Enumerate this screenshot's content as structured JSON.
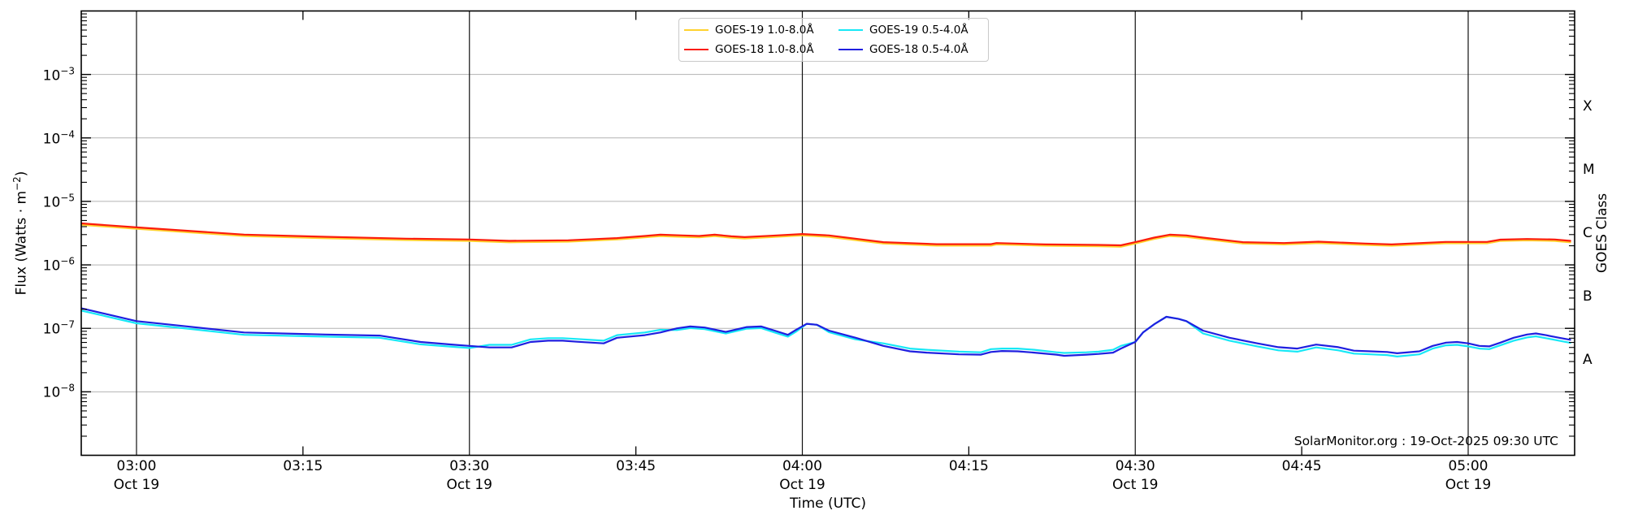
{
  "annotation": "SolarMonitor.org : 19-Oct-2025 09:30 UTC",
  "colors": {
    "goes19_long": "#ffd22e",
    "goes18_long": "#fb1c0c",
    "goes19_short": "#17e8f6",
    "goes18_short": "#1f1fe0",
    "gridline": "#b3b3b3",
    "timeline": "#111111",
    "spine": "#000000"
  },
  "legend": {
    "items": [
      {
        "label": "GOES-19 1.0-8.0Å",
        "color": "#ffd22e"
      },
      {
        "label": "GOES-19 0.5-4.0Å",
        "color": "#17e8f6"
      },
      {
        "label": "GOES-18 1.0-8.0Å",
        "color": "#fb1c0c"
      },
      {
        "label": "GOES-18 0.5-4.0Å",
        "color": "#1f1fe0"
      }
    ]
  },
  "axes": {
    "xlabel": "Time (UTC)",
    "ylabel_prefix": "Flux (Watts · m",
    "ylabel_exp": "−2",
    "right_label": "GOES Class"
  },
  "chart_data": {
    "type": "line",
    "title": "GOES X-ray flux",
    "xlabel": "Time (UTC)",
    "ylabel": "Flux (Watts m^-2)",
    "x_axis": {
      "start_min_rel_0300": -5,
      "end_min_rel_0300": 129.6,
      "major_ticks": [
        {
          "t": 0,
          "label": "03:00",
          "date": "Oct 19"
        },
        {
          "t": 30,
          "label": "03:30",
          "date": "Oct 19"
        },
        {
          "t": 60,
          "label": "04:00",
          "date": "Oct 19"
        },
        {
          "t": 90,
          "label": "04:30",
          "date": "Oct 19"
        },
        {
          "t": 120,
          "label": "05:00",
          "date": "Oct 19"
        }
      ],
      "minor_ticks": [
        {
          "t": 15,
          "label": "03:15"
        },
        {
          "t": 45,
          "label": "03:45"
        },
        {
          "t": 75,
          "label": "04:15"
        },
        {
          "t": 105,
          "label": "04:45"
        }
      ]
    },
    "y_axis": {
      "scale": "log",
      "ylim": [
        1e-09,
        0.01
      ],
      "labeled_exponents": [
        -3,
        -4,
        -5,
        -6,
        -7,
        -8
      ],
      "grid_exponents": [
        -3,
        -4,
        -5,
        -6,
        -7,
        -8
      ]
    },
    "goes_classes": [
      {
        "label": "X",
        "log_center": -3.5
      },
      {
        "label": "M",
        "log_center": -4.5
      },
      {
        "label": "C",
        "log_center": -5.5
      },
      {
        "label": "B",
        "log_center": -6.5
      },
      {
        "label": "A",
        "log_center": -7.5
      }
    ],
    "series": [
      {
        "name": "GOES-19 1.0-8.0A",
        "color": "#ffd22e",
        "width": 2.2,
        "points": [
          [
            -5,
            4.28e-06
          ],
          [
            0,
            3.7e-06
          ],
          [
            9.7,
            2.85e-06
          ],
          [
            17,
            2.63e-06
          ],
          [
            24.3,
            2.46e-06
          ],
          [
            30,
            2.38e-06
          ],
          [
            33.6,
            2.27e-06
          ],
          [
            38.9,
            2.32e-06
          ],
          [
            43.3,
            2.51e-06
          ],
          [
            45.8,
            2.71e-06
          ],
          [
            47.2,
            2.84e-06
          ],
          [
            49.2,
            2.76e-06
          ],
          [
            50.7,
            2.71e-06
          ],
          [
            52.1,
            2.84e-06
          ],
          [
            53.6,
            2.68e-06
          ],
          [
            54.8,
            2.6e-06
          ],
          [
            57.2,
            2.74e-06
          ],
          [
            60,
            2.91e-06
          ],
          [
            62.4,
            2.76e-06
          ],
          [
            67.3,
            2.17e-06
          ],
          [
            72.1,
            2.01e-06
          ],
          [
            77,
            2.01e-06
          ],
          [
            77.5,
            2.1e-06
          ],
          [
            81.9,
            2e-06
          ],
          [
            86.7,
            1.96e-06
          ],
          [
            88.7,
            1.93e-06
          ],
          [
            90,
            2.17e-06
          ],
          [
            91.7,
            2.56e-06
          ],
          [
            93.1,
            2.84e-06
          ],
          [
            94.6,
            2.76e-06
          ],
          [
            96.1,
            2.56e-06
          ],
          [
            99.7,
            2.17e-06
          ],
          [
            103.4,
            2.1e-06
          ],
          [
            106.5,
            2.2e-06
          ],
          [
            110.7,
            2.06e-06
          ],
          [
            113.1,
            2e-06
          ],
          [
            118,
            2.19e-06
          ],
          [
            120,
            2.19e-06
          ],
          [
            121.7,
            2.19e-06
          ],
          [
            122.9,
            2.38e-06
          ],
          [
            125.3,
            2.43e-06
          ],
          [
            127.8,
            2.38e-06
          ],
          [
            129.2,
            2.27e-06
          ]
        ]
      },
      {
        "name": "GOES-18 1.0-8.0A",
        "color": "#fb1c0c",
        "width": 2.2,
        "points": [
          [
            -5,
            4.5e-06
          ],
          [
            0,
            3.9e-06
          ],
          [
            9.7,
            3e-06
          ],
          [
            17,
            2.77e-06
          ],
          [
            24.3,
            2.59e-06
          ],
          [
            30,
            2.51e-06
          ],
          [
            33.6,
            2.39e-06
          ],
          [
            38.9,
            2.44e-06
          ],
          [
            43.3,
            2.64e-06
          ],
          [
            45.8,
            2.85e-06
          ],
          [
            47.2,
            2.99e-06
          ],
          [
            49.2,
            2.91e-06
          ],
          [
            50.7,
            2.85e-06
          ],
          [
            52.1,
            2.99e-06
          ],
          [
            53.6,
            2.82e-06
          ],
          [
            54.8,
            2.74e-06
          ],
          [
            57.2,
            2.88e-06
          ],
          [
            60,
            3.06e-06
          ],
          [
            62.4,
            2.91e-06
          ],
          [
            67.3,
            2.28e-06
          ],
          [
            72.1,
            2.12e-06
          ],
          [
            77,
            2.12e-06
          ],
          [
            77.5,
            2.21e-06
          ],
          [
            81.9,
            2.1e-06
          ],
          [
            86.7,
            2.06e-06
          ],
          [
            88.7,
            2.03e-06
          ],
          [
            90,
            2.28e-06
          ],
          [
            91.7,
            2.69e-06
          ],
          [
            93.1,
            2.99e-06
          ],
          [
            94.6,
            2.91e-06
          ],
          [
            96.1,
            2.69e-06
          ],
          [
            99.7,
            2.28e-06
          ],
          [
            103.4,
            2.21e-06
          ],
          [
            106.5,
            2.32e-06
          ],
          [
            110.7,
            2.17e-06
          ],
          [
            113.1,
            2.1e-06
          ],
          [
            118,
            2.3e-06
          ],
          [
            120,
            2.3e-06
          ],
          [
            121.7,
            2.3e-06
          ],
          [
            122.9,
            2.5e-06
          ],
          [
            125.3,
            2.56e-06
          ],
          [
            127.8,
            2.51e-06
          ],
          [
            129.2,
            2.39e-06
          ]
        ]
      },
      {
        "name": "GOES-19 0.5-4.0A",
        "color": "#17e8f6",
        "width": 2.2,
        "points": [
          [
            -5,
            1.91e-07
          ],
          [
            0,
            1.2e-07
          ],
          [
            4.8,
            9.8e-08
          ],
          [
            9.7,
            7.9e-08
          ],
          [
            17,
            7.4e-08
          ],
          [
            21.9,
            7.1e-08
          ],
          [
            25.6,
            5.6e-08
          ],
          [
            28.7,
            5.1e-08
          ],
          [
            30,
            4.9e-08
          ],
          [
            31.8,
            5.5e-08
          ],
          [
            33.8,
            5.5e-08
          ],
          [
            35.5,
            6.7e-08
          ],
          [
            37.1,
            7e-08
          ],
          [
            38.4,
            7e-08
          ],
          [
            39.7,
            6.8e-08
          ],
          [
            42.1,
            6.4e-08
          ],
          [
            43.3,
            7.8e-08
          ],
          [
            45.8,
            8.6e-08
          ],
          [
            47.2,
            9.5e-08
          ],
          [
            48.7,
            9.4e-08
          ],
          [
            49.9,
            1.01e-07
          ],
          [
            51.2,
            9.7e-08
          ],
          [
            53.1,
            8.3e-08
          ],
          [
            55,
            9.9e-08
          ],
          [
            56.3,
            1.01e-07
          ],
          [
            57.5,
            8.6e-08
          ],
          [
            58.7,
            7.4e-08
          ],
          [
            59.4,
            8.8e-08
          ],
          [
            60.4,
            1.18e-07
          ],
          [
            61.3,
            1.14e-07
          ],
          [
            62.4,
            8.7e-08
          ],
          [
            64.8,
            6.7e-08
          ],
          [
            67.3,
            5.8e-08
          ],
          [
            69.7,
            4.8e-08
          ],
          [
            71.2,
            4.6e-08
          ],
          [
            74.1,
            4.3e-08
          ],
          [
            76.1,
            4.2e-08
          ],
          [
            77,
            4.7e-08
          ],
          [
            78,
            4.8e-08
          ],
          [
            79.4,
            4.8e-08
          ],
          [
            80.9,
            4.6e-08
          ],
          [
            82.9,
            4.2e-08
          ],
          [
            83.6,
            4.1e-08
          ],
          [
            85.6,
            4.2e-08
          ],
          [
            86.7,
            4.3e-08
          ],
          [
            88,
            4.6e-08
          ],
          [
            88.7,
            5.3e-08
          ],
          [
            90,
            6.1e-08
          ],
          [
            90.7,
            8.6e-08
          ],
          [
            91.7,
            1.16e-07
          ],
          [
            92.8,
            1.52e-07
          ],
          [
            93.9,
            1.41e-07
          ],
          [
            94.6,
            1.3e-07
          ],
          [
            96.1,
            8.3e-08
          ],
          [
            98.5,
            6.4e-08
          ],
          [
            101,
            5.2e-08
          ],
          [
            102.9,
            4.5e-08
          ],
          [
            104.6,
            4.3e-08
          ],
          [
            106.3,
            5e-08
          ],
          [
            108.3,
            4.5e-08
          ],
          [
            109.7,
            4e-08
          ],
          [
            111.2,
            3.9e-08
          ],
          [
            112.7,
            3.8e-08
          ],
          [
            113.6,
            3.6e-08
          ],
          [
            115.6,
            3.9e-08
          ],
          [
            116.8,
            4.8e-08
          ],
          [
            118,
            5.4e-08
          ],
          [
            119,
            5.5e-08
          ],
          [
            120,
            5.2e-08
          ],
          [
            121,
            4.8e-08
          ],
          [
            121.9,
            4.7e-08
          ],
          [
            122.9,
            5.4e-08
          ],
          [
            124.1,
            6.4e-08
          ],
          [
            125.3,
            7.2e-08
          ],
          [
            126.1,
            7.5e-08
          ],
          [
            127,
            7e-08
          ],
          [
            128.2,
            6.4e-08
          ],
          [
            129.2,
            5.9e-08
          ]
        ]
      },
      {
        "name": "GOES-18 0.5-4.0A",
        "color": "#1f1fe0",
        "width": 2.2,
        "points": [
          [
            -5,
            2.08e-07
          ],
          [
            0,
            1.3e-07
          ],
          [
            4.8,
            1.06e-07
          ],
          [
            9.7,
            8.6e-08
          ],
          [
            17,
            8e-08
          ],
          [
            21.9,
            7.7e-08
          ],
          [
            25.6,
            6.1e-08
          ],
          [
            28.7,
            5.5e-08
          ],
          [
            30,
            5.3e-08
          ],
          [
            31.8,
            5e-08
          ],
          [
            33.8,
            5e-08
          ],
          [
            35.5,
            6.1e-08
          ],
          [
            37.1,
            6.4e-08
          ],
          [
            38.4,
            6.4e-08
          ],
          [
            39.7,
            6.15e-08
          ],
          [
            42.1,
            5.8e-08
          ],
          [
            43.3,
            7.1e-08
          ],
          [
            45.8,
            7.8e-08
          ],
          [
            47.2,
            8.6e-08
          ],
          [
            48.7,
            1e-07
          ],
          [
            49.9,
            1.07e-07
          ],
          [
            51.2,
            1.03e-07
          ],
          [
            53.1,
            8.8e-08
          ],
          [
            55,
            1.05e-07
          ],
          [
            56.3,
            1.07e-07
          ],
          [
            57.5,
            9.2e-08
          ],
          [
            58.7,
            7.9e-08
          ],
          [
            59.4,
            9.4e-08
          ],
          [
            60.4,
            1.18e-07
          ],
          [
            61.3,
            1.14e-07
          ],
          [
            62.4,
            9.2e-08
          ],
          [
            64.8,
            7.1e-08
          ],
          [
            67.3,
            5.3e-08
          ],
          [
            69.7,
            4.35e-08
          ],
          [
            71.2,
            4.15e-08
          ],
          [
            74.1,
            3.9e-08
          ],
          [
            76.1,
            3.85e-08
          ],
          [
            77,
            4.25e-08
          ],
          [
            78,
            4.4e-08
          ],
          [
            79.4,
            4.35e-08
          ],
          [
            80.9,
            4.15e-08
          ],
          [
            82.9,
            3.85e-08
          ],
          [
            83.6,
            3.7e-08
          ],
          [
            85.6,
            3.85e-08
          ],
          [
            86.7,
            3.95e-08
          ],
          [
            88,
            4.15e-08
          ],
          [
            88.7,
            4.8e-08
          ],
          [
            90,
            6.1e-08
          ],
          [
            90.7,
            8.6e-08
          ],
          [
            91.7,
            1.16e-07
          ],
          [
            92.8,
            1.52e-07
          ],
          [
            93.9,
            1.41e-07
          ],
          [
            94.6,
            1.3e-07
          ],
          [
            96.1,
            9.2e-08
          ],
          [
            98.5,
            7.1e-08
          ],
          [
            101,
            5.8e-08
          ],
          [
            102.9,
            5.05e-08
          ],
          [
            104.6,
            4.8e-08
          ],
          [
            106.3,
            5.55e-08
          ],
          [
            108.3,
            5.05e-08
          ],
          [
            109.7,
            4.45e-08
          ],
          [
            111.2,
            4.35e-08
          ],
          [
            112.7,
            4.25e-08
          ],
          [
            113.6,
            4.05e-08
          ],
          [
            115.6,
            4.35e-08
          ],
          [
            116.8,
            5.3e-08
          ],
          [
            118,
            5.95e-08
          ],
          [
            119,
            6.1e-08
          ],
          [
            120,
            5.8e-08
          ],
          [
            121,
            5.3e-08
          ],
          [
            121.9,
            5.2e-08
          ],
          [
            122.9,
            5.95e-08
          ],
          [
            124.1,
            7.1e-08
          ],
          [
            125.3,
            8e-08
          ],
          [
            126.1,
            8.3e-08
          ],
          [
            127,
            7.8e-08
          ],
          [
            128.2,
            7.1e-08
          ],
          [
            129.2,
            6.6e-08
          ]
        ]
      }
    ],
    "legend_entries": [
      "GOES-19 1.0-8.0Å",
      "GOES-18 1.0-8.0Å",
      "GOES-19 0.5-4.0Å",
      "GOES-18 0.5-4.0Å"
    ],
    "legend_position": "top-center",
    "grid": "horizontal decades gray; vertical black lines every 30 min"
  }
}
